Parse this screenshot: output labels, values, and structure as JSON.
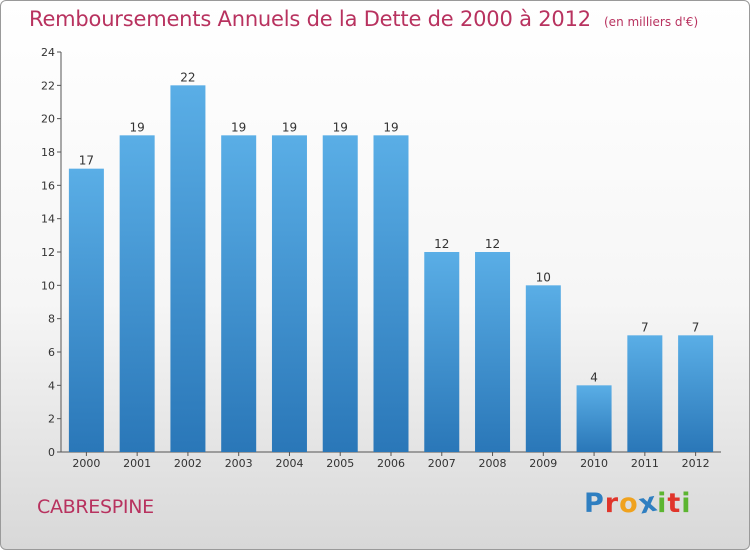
{
  "header": {
    "title": "Remboursements Annuels de la Dette de 2000 à 2012",
    "unit": "(en milliers d'€)"
  },
  "footer": {
    "town": "CABRESPINE",
    "brand_letters": [
      "P",
      "r",
      "o",
      "x",
      "i",
      "t",
      "i"
    ],
    "brand_colors": [
      "#2f7fc1",
      "#e0352b",
      "#f0a21e",
      "#2f7fc1",
      "#5cb531",
      "#e0352b",
      "#5cb531"
    ]
  },
  "colors": {
    "title": "#b8325f",
    "bar_top": "#5aaee6",
    "bar_bottom": "#2a77b8"
  },
  "chart_data": {
    "type": "bar",
    "title": "Remboursements Annuels de la Dette de 2000 à 2012",
    "categories": [
      "2000",
      "2001",
      "2002",
      "2003",
      "2004",
      "2005",
      "2006",
      "2007",
      "2008",
      "2009",
      "2010",
      "2011",
      "2012"
    ],
    "values": [
      17,
      19,
      22,
      19,
      19,
      19,
      19,
      12,
      12,
      10,
      4,
      7,
      7
    ],
    "ylim": [
      0,
      24
    ],
    "yticks": [
      0,
      2,
      4,
      6,
      8,
      10,
      12,
      14,
      16,
      18,
      20,
      22,
      24
    ],
    "grid": false,
    "legend": "none"
  }
}
